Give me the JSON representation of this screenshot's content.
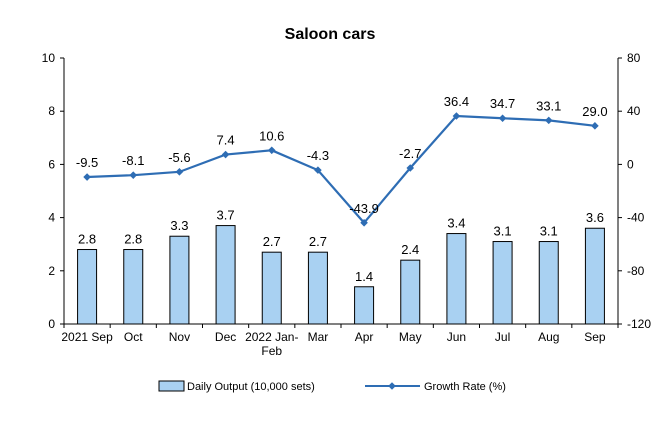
{
  "chart_data": {
    "type": "bar+line",
    "title": "Saloon cars",
    "categories": [
      "2021 Sep",
      "Oct",
      "Nov",
      "Dec",
      "2022 Jan-Feb",
      "Mar",
      "Apr",
      "May",
      "Jun",
      "Jul",
      "Aug",
      "Sep"
    ],
    "series": [
      {
        "name": "Daily Output (10,000 sets)",
        "type": "bar",
        "axis": "left",
        "values": [
          2.8,
          2.8,
          3.3,
          3.7,
          2.7,
          2.7,
          1.4,
          2.4,
          3.4,
          3.1,
          3.1,
          3.6
        ],
        "labels": [
          "2.8",
          "2.8",
          "3.3",
          "3.7",
          "2.7",
          "2.7",
          "1.4",
          "2.4",
          "3.4",
          "3.1",
          "3.1",
          "3.6"
        ]
      },
      {
        "name": "Growth Rate (%)",
        "type": "line",
        "axis": "right",
        "values": [
          -9.5,
          -8.1,
          -5.6,
          7.4,
          10.6,
          -4.3,
          -43.9,
          -2.7,
          36.4,
          34.7,
          33.1,
          29.0
        ],
        "labels": [
          "-9.5",
          "-8.1",
          "-5.6",
          "7.4",
          "10.6",
          "-4.3",
          "-43.9",
          "-2.7",
          "36.4",
          "34.7",
          "33.1",
          "29.0"
        ]
      }
    ],
    "y_left": {
      "lim": [
        0,
        10
      ],
      "ticks": [
        "0",
        "2",
        "4",
        "6",
        "8",
        "10"
      ]
    },
    "y_right": {
      "lim": [
        -120,
        80
      ],
      "ticks": [
        "-120",
        "-80",
        "-40",
        "0",
        "40",
        "80"
      ]
    },
    "grid": false,
    "legend": "bottom",
    "colors": {
      "bar_fill": "#a9d1f2",
      "bar_stroke": "#000000",
      "line": "#2e6db4",
      "axis": "#000000"
    }
  }
}
